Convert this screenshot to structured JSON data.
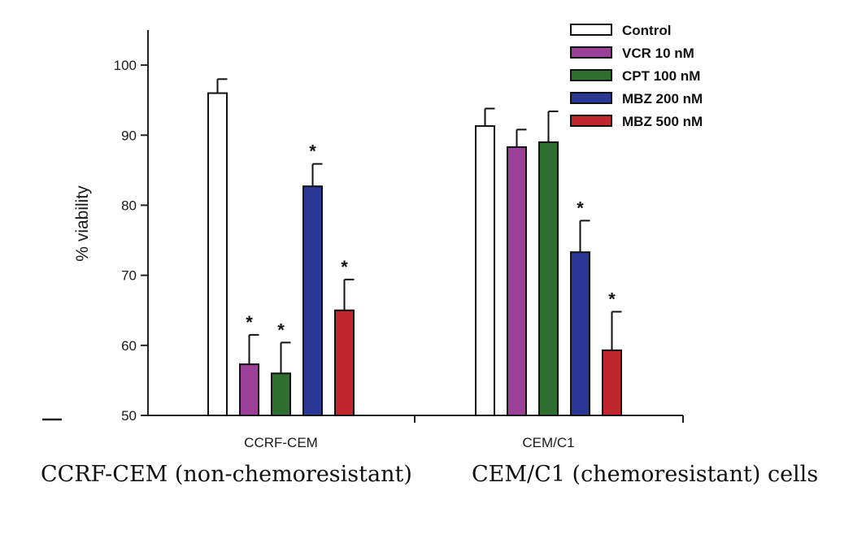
{
  "chart_data": {
    "type": "bar",
    "title": "",
    "xlabel": "",
    "ylabel": "% viability",
    "ylim": [
      50,
      105
    ],
    "yticks": [
      50,
      60,
      70,
      80,
      90,
      100
    ],
    "grid": false,
    "legend_position": "top-right",
    "categories": [
      "CCRF-CEM",
      "CEM/C1"
    ],
    "series": [
      {
        "name": "Control",
        "color": "#ffffff",
        "values": [
          96.0,
          91.3
        ],
        "errors": [
          2.0,
          2.5
        ],
        "significant": [
          false,
          false
        ]
      },
      {
        "name": "VCR 10 nM",
        "color": "#9b3f98",
        "values": [
          57.3,
          88.3
        ],
        "errors": [
          4.2,
          2.5
        ],
        "significant": [
          true,
          false
        ]
      },
      {
        "name": "CPT 100 nM",
        "color": "#2e6e2e",
        "values": [
          56.0,
          89.0
        ],
        "errors": [
          4.4,
          4.4
        ],
        "significant": [
          true,
          false
        ]
      },
      {
        "name": "MBZ 200 nM",
        "color": "#2b3795",
        "values": [
          82.7,
          73.3
        ],
        "errors": [
          3.2,
          4.5
        ],
        "significant": [
          true,
          true
        ]
      },
      {
        "name": "MBZ 500 nM",
        "color": "#c0282d",
        "values": [
          65.0,
          59.3
        ],
        "errors": [
          4.4,
          5.5
        ],
        "significant": [
          true,
          true
        ]
      }
    ],
    "significance_marker": "*"
  },
  "captions": {
    "left": "CCRF-CEM (non-chemoresistant)",
    "right": "CEM/C1 (chemoresistant) cells"
  }
}
